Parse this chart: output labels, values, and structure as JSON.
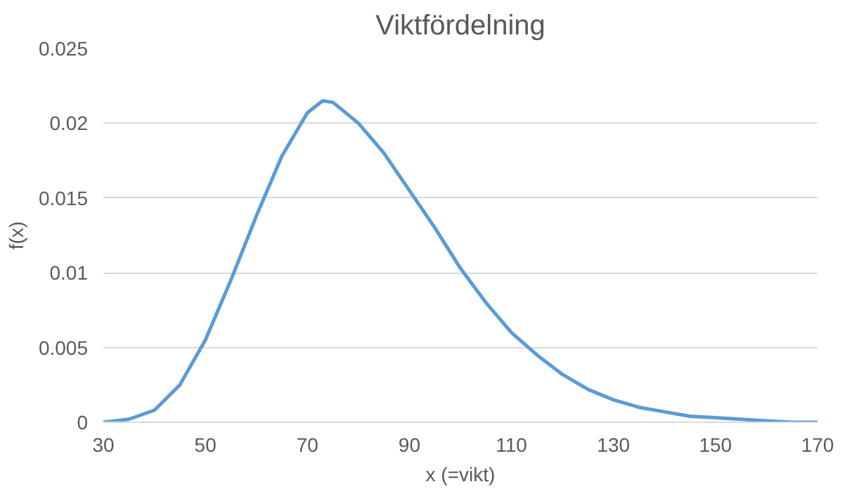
{
  "chart_data": {
    "type": "line",
    "title": "Viktfördelning",
    "xlabel": "x (=vikt)",
    "ylabel": "f(x)",
    "x": [
      30,
      35,
      40,
      45,
      50,
      55,
      60,
      65,
      70,
      73,
      75,
      80,
      85,
      90,
      95,
      100,
      105,
      110,
      115,
      120,
      125,
      130,
      135,
      140,
      145,
      150,
      155,
      160,
      165,
      170
    ],
    "series": [
      {
        "color": "#5b9bd5",
        "values": [
          0,
          0.0002,
          0.0008,
          0.0025,
          0.0055,
          0.0095,
          0.0138,
          0.0178,
          0.0207,
          0.0215,
          0.0214,
          0.02,
          0.018,
          0.0155,
          0.013,
          0.0103,
          0.008,
          0.006,
          0.0045,
          0.0032,
          0.0022,
          0.0015,
          0.001,
          0.0007,
          0.0004,
          0.0003,
          0.0002,
          0.0001,
          0,
          0
        ]
      }
    ],
    "xlim": [
      30,
      170
    ],
    "xticks": [
      30,
      50,
      70,
      90,
      110,
      130,
      150,
      170
    ],
    "ylim": [
      0,
      0.025
    ],
    "yticks": [
      0,
      0.005,
      0.01,
      0.015,
      0.02,
      0.025
    ],
    "grid": "y",
    "marker": "none",
    "line_style": "solid"
  }
}
